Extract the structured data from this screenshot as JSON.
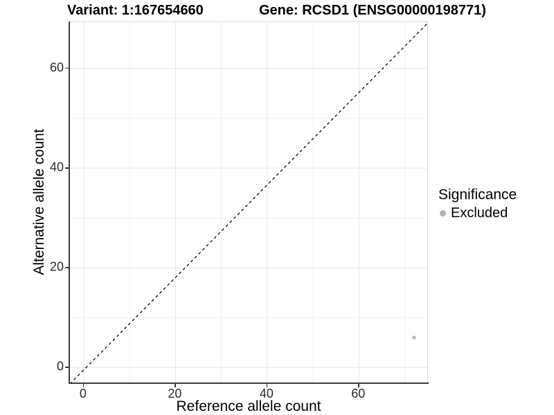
{
  "chart_data": {
    "type": "scatter",
    "title_left": "Variant: 1:167654660",
    "title_right": "Gene: RCSD1 (ENSG00000198771)",
    "xlabel": "Reference allele count",
    "ylabel": "Alternative allele count",
    "xlim": [
      -3.0,
      75.2
    ],
    "ylim": [
      -3.3,
      69.3
    ],
    "x_ticks": [
      0,
      20,
      40,
      60
    ],
    "y_ticks": [
      0,
      20,
      40,
      60
    ],
    "x_minor_ticks": [
      10,
      30,
      50,
      70
    ],
    "y_minor_ticks": [
      10,
      30,
      50
    ],
    "grid": true,
    "legend_position": "right",
    "legend_title": "Significance",
    "reference_line": {
      "type": "identity",
      "slope": 1,
      "intercept": 0,
      "style": "dashed",
      "color": "#000000"
    },
    "series": [
      {
        "name": "Excluded",
        "color": "#b0b0b0",
        "points": [
          {
            "x": 72,
            "y": 6
          }
        ]
      }
    ],
    "colors": {
      "major_grid": "#e6e6e6",
      "minor_grid": "#f2f2f2",
      "panel_border": "#d9d9d9",
      "axis_line": "#3c3c3c",
      "point": "#b0b0b0"
    }
  }
}
